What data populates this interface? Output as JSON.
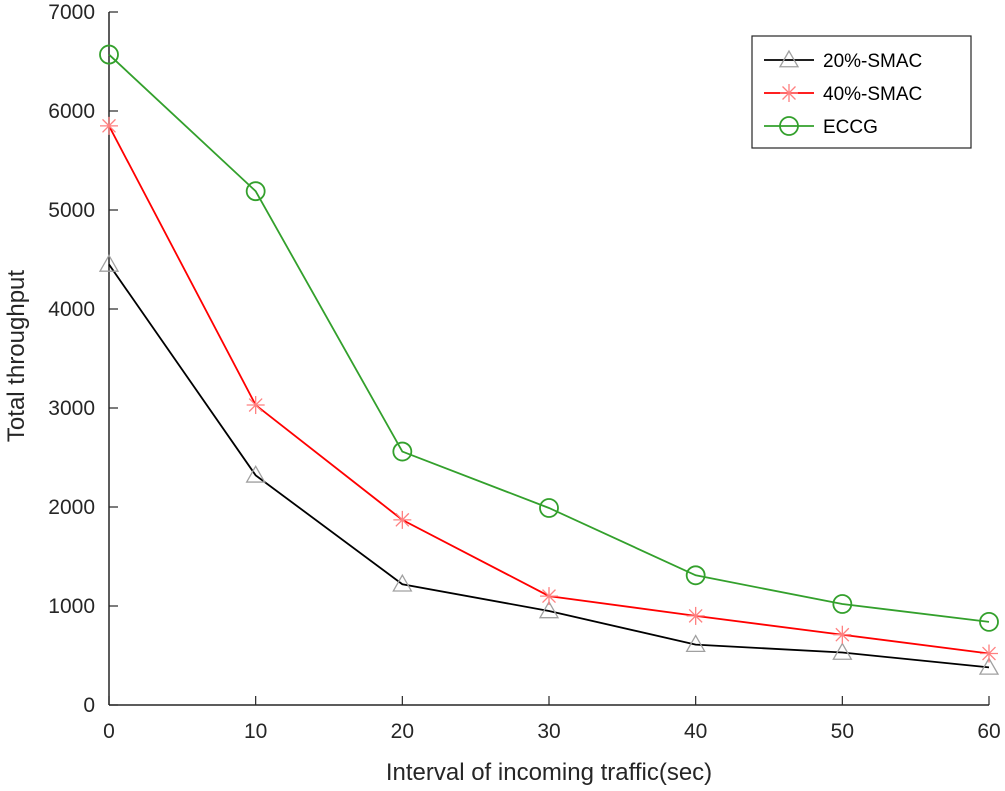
{
  "chart_data": {
    "type": "line",
    "title": "",
    "xlabel": "Interval of incoming traffic(sec)",
    "ylabel": "Total throughput",
    "x": [
      0,
      10,
      20,
      30,
      40,
      50,
      60
    ],
    "xlim": [
      0,
      60
    ],
    "ylim": [
      0,
      7000
    ],
    "xticks": [
      0,
      10,
      20,
      30,
      40,
      50,
      60
    ],
    "yticks": [
      0,
      1000,
      2000,
      3000,
      4000,
      5000,
      6000,
      7000
    ],
    "grid": false,
    "legend_position": "top-right",
    "series": [
      {
        "name": "20%-SMAC",
        "color": "#000000",
        "marker": "triangle",
        "marker_color": "#a0a0a0",
        "values": [
          4450,
          2320,
          1220,
          950,
          610,
          530,
          380
        ]
      },
      {
        "name": "40%-SMAC",
        "color": "#ff0000",
        "marker": "asterisk",
        "marker_color": "#ff8080",
        "values": [
          5850,
          3030,
          1870,
          1100,
          900,
          710,
          520
        ]
      },
      {
        "name": "ECCG",
        "color": "#33a02c",
        "marker": "circle",
        "marker_color": "#33a02c",
        "values": [
          6570,
          5190,
          2560,
          1990,
          1310,
          1020,
          840
        ]
      }
    ]
  }
}
